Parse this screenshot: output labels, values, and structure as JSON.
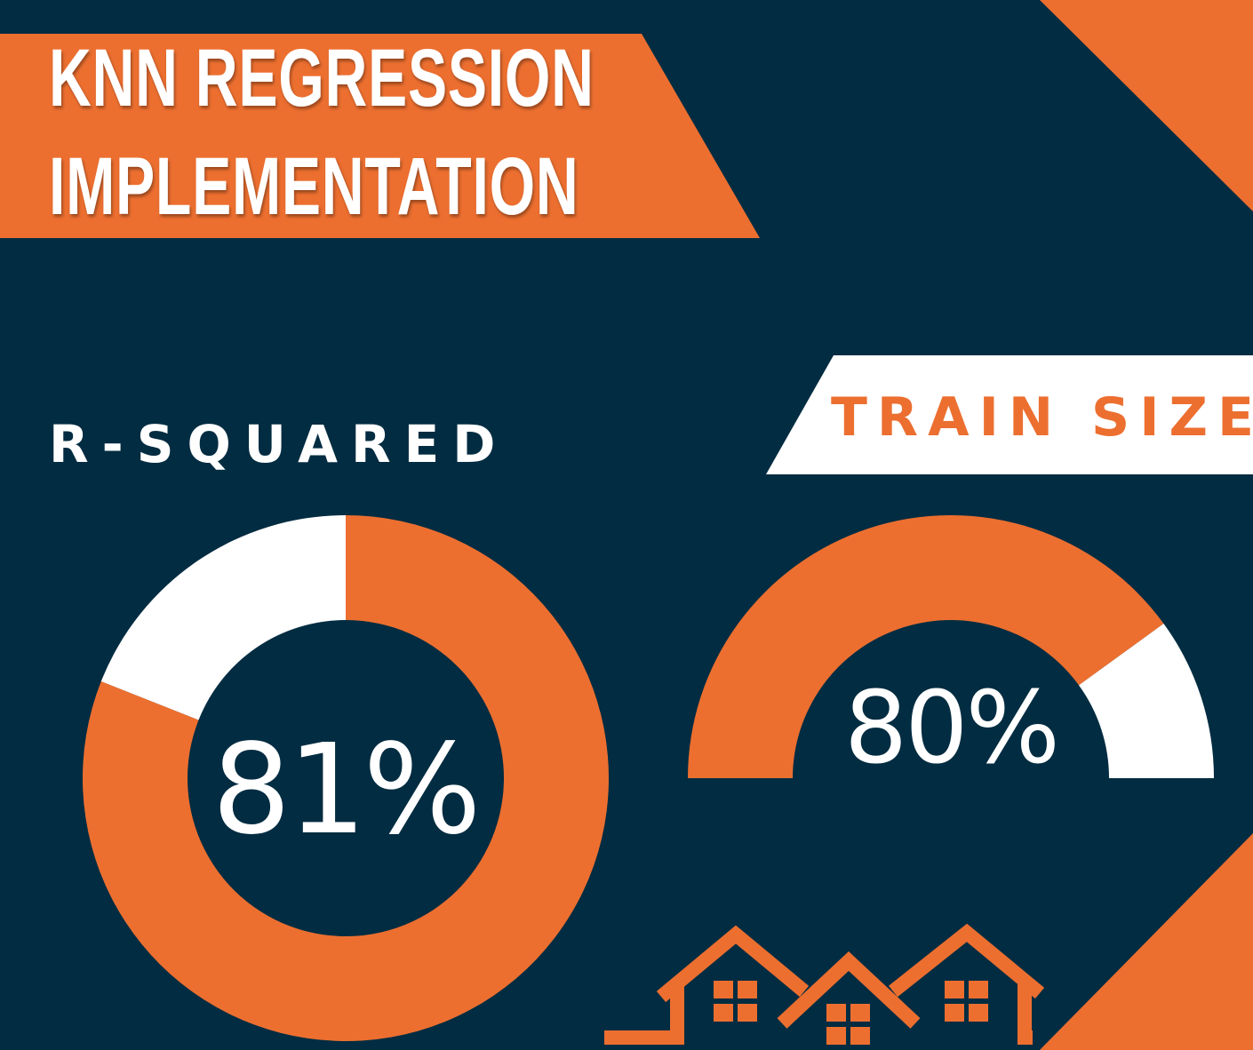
{
  "title": {
    "line1": "KNN REGRESSION",
    "line2": "IMPLEMENTATION"
  },
  "chart_data": [
    {
      "type": "pie",
      "title": "R-SQUARED",
      "value_label": "81%",
      "slices": [
        {
          "label": "R-squared",
          "value": 81,
          "color": "#ec6f30"
        },
        {
          "label": "",
          "value": 19,
          "color": "#ffffff"
        }
      ]
    },
    {
      "type": "pie",
      "title": "TRAIN SIZE",
      "value_label": "80%",
      "style": "half-donut gauge",
      "slices": [
        {
          "label": "Train size",
          "value": 80,
          "color": "#ec6f30"
        },
        {
          "label": "",
          "value": 20,
          "color": "#ffffff"
        }
      ]
    }
  ],
  "colors": {
    "background": "#022c41",
    "accent": "#ec6f30",
    "light": "#ffffff"
  },
  "icons": [
    "houses-icon"
  ]
}
